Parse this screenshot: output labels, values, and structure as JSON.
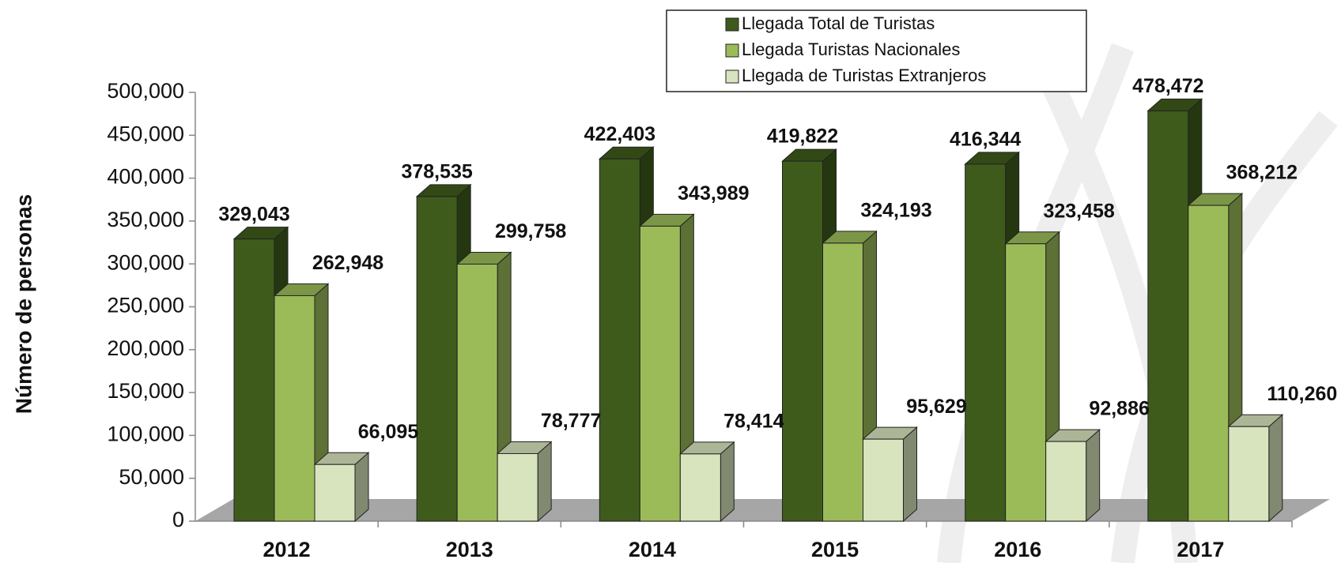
{
  "chart_data": {
    "type": "bar3d",
    "y_axis_label": "Número de personas",
    "categories": [
      "2012",
      "2013",
      "2014",
      "2015",
      "2016",
      "2017"
    ],
    "series": [
      {
        "name": "Llegada Total de Turistas",
        "color": "#3e5b1c",
        "values": [
          329043,
          378535,
          422403,
          419822,
          416344,
          478472
        ],
        "value_labels": [
          "329,043",
          "378,535",
          "422,403",
          "419,822",
          "416,344",
          "478,472"
        ]
      },
      {
        "name": "Llegada  Turistas Nacionales",
        "color": "#9bbb59",
        "values": [
          262948,
          299758,
          343989,
          324193,
          323458,
          368212
        ],
        "value_labels": [
          "262,948",
          "299,758",
          "343,989",
          "324,193",
          "323,458",
          "368,212"
        ]
      },
      {
        "name": "Llegada de Turistas Extranjeros",
        "color": "#d7e4bd",
        "values": [
          66095,
          78777,
          78414,
          95629,
          92886,
          110260
        ],
        "value_labels": [
          "66,095",
          "78,777",
          "78,414",
          "95,629",
          "92,886",
          "110,260"
        ]
      }
    ],
    "ylim": [
      0,
      500000
    ],
    "yticks": [
      0,
      {
        "value": 50000,
        "label": "50,000"
      },
      {
        "value": 100000,
        "label": "100,000"
      },
      {
        "value": 150000,
        "label": "150,000"
      },
      {
        "value": 200000,
        "label": "200,000"
      },
      {
        "value": 250000,
        "label": "250,000"
      },
      {
        "value": 300000,
        "label": "300,000"
      },
      {
        "value": 350000,
        "label": "350,000"
      },
      {
        "value": 400000,
        "label": "400,000"
      },
      {
        "value": 450000,
        "label": "450,000"
      },
      {
        "value": 500000,
        "label": "500,000"
      }
    ],
    "legend": "top"
  }
}
